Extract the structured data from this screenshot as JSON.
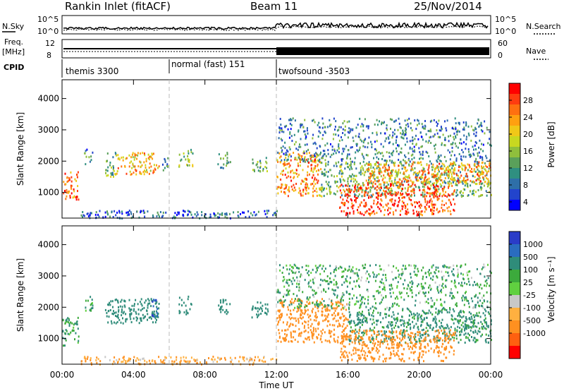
{
  "header": {
    "site": "Rankin Inlet (fitACF)",
    "beam": "Beam 11",
    "date": "25/Nov/2014"
  },
  "status_panels": {
    "nsky_label": "N.Sky",
    "nsky_ticks": [
      "10^5",
      "10^0"
    ],
    "nsearch_label": "N.Search",
    "nsearch_ticks": [
      "10^5",
      "10^0"
    ],
    "freq_label": "Freq.",
    "freq_unit": "[MHz]",
    "freq_ticks": [
      "12",
      "8"
    ],
    "nave_label": "Nave",
    "nave_ticks": [
      "60",
      "0"
    ],
    "cpid_label": "CPID",
    "cpid_segments": [
      {
        "label": "themis 3300",
        "start": 0,
        "end": 6
      },
      {
        "label": "normal (fast) 151",
        "start": 6,
        "end": 12
      },
      {
        "label": "twofsound -3503",
        "start": 12,
        "end": 24
      }
    ]
  },
  "axes": {
    "x_ticks": [
      "00:00",
      "04:00",
      "08:00",
      "12:00",
      "16:00",
      "20:00",
      "00:00"
    ],
    "x_tick_hours": [
      0,
      4,
      8,
      12,
      16,
      20,
      24
    ],
    "x_label": "Time UT",
    "y_label": "Slant Range [km]",
    "y_ticks": [
      "1000",
      "2000",
      "3000",
      "4000"
    ],
    "y_tick_values": [
      1000,
      2000,
      3000,
      4000
    ],
    "y_range": [
      180,
      4600
    ],
    "x_range": [
      0,
      24
    ]
  },
  "chart_data": [
    {
      "type": "heatmap",
      "panel": "power",
      "colorbar_label": "Power [dB]",
      "colorbar_ticks": [
        "28",
        "24",
        "20",
        "16",
        "12",
        "8",
        "4"
      ],
      "colorbar_values": [
        28,
        24,
        20,
        16,
        12,
        8,
        4
      ],
      "colorbar_colors": [
        "#0000ff",
        "#2244cc",
        "#2e6fa8",
        "#2f8f80",
        "#5aa05a",
        "#8fbf3c",
        "#c8d820",
        "#f0c818",
        "#ffa010",
        "#ff7010",
        "#ff3c10",
        "#ff0000"
      ],
      "regions": [
        {
          "t0": 0.0,
          "t1": 0.9,
          "r0": 800,
          "r1": 1700,
          "value": 26
        },
        {
          "t0": 1.2,
          "t1": 1.7,
          "r0": 1900,
          "r1": 2400,
          "value": 10
        },
        {
          "t0": 2.4,
          "t1": 3.0,
          "r0": 1500,
          "r1": 2300,
          "value": 14
        },
        {
          "t0": 3.0,
          "t1": 5.4,
          "r0": 1600,
          "r1": 2300,
          "value": 22
        },
        {
          "t0": 5.6,
          "t1": 5.9,
          "r0": 1700,
          "r1": 2200,
          "value": 12
        },
        {
          "t0": 6.5,
          "t1": 7.3,
          "r0": 1800,
          "r1": 2400,
          "value": 16
        },
        {
          "t0": 8.7,
          "t1": 9.4,
          "r0": 1800,
          "r1": 2300,
          "value": 12
        },
        {
          "t0": 10.6,
          "t1": 11.5,
          "r0": 1700,
          "r1": 2200,
          "value": 14
        },
        {
          "t0": 12.0,
          "t1": 14.5,
          "r0": 900,
          "r1": 2300,
          "value": 24
        },
        {
          "t0": 14.5,
          "t1": 24.0,
          "r0": 900,
          "r1": 2000,
          "value": 14
        },
        {
          "t0": 15.5,
          "t1": 22.0,
          "r0": 300,
          "r1": 1300,
          "value": 28
        },
        {
          "t0": 17.0,
          "t1": 24.0,
          "r0": 1300,
          "r1": 2000,
          "value": 24
        },
        {
          "t0": 12.0,
          "t1": 24.0,
          "r0": 2000,
          "r1": 3400,
          "value": 10
        },
        {
          "t0": 1.0,
          "t1": 12.0,
          "r0": 200,
          "r1": 450,
          "value": 8
        }
      ]
    },
    {
      "type": "heatmap",
      "panel": "velocity",
      "colorbar_label": "Velocity [m s⁻¹]",
      "colorbar_ticks": [
        "1000",
        "500",
        "100",
        "25",
        "-25",
        "-100",
        "-500",
        "-1000"
      ],
      "colorbar_values": [
        1000,
        500,
        100,
        25,
        -25,
        -100,
        -500,
        -1000
      ],
      "colorbar_colors": [
        "#2a3cc8",
        "#2a6cc0",
        "#2f8c7a",
        "#3caa3c",
        "#60d040",
        "#c8c8c8",
        "#ffb040",
        "#ff9020",
        "#ff6010",
        "#ff0000"
      ],
      "regions": [
        {
          "t0": 0.0,
          "t1": 0.9,
          "r0": 800,
          "r1": 1700,
          "value": 100
        },
        {
          "t0": 1.2,
          "t1": 1.7,
          "r0": 1900,
          "r1": 2400,
          "value": 100
        },
        {
          "t0": 2.4,
          "t1": 5.4,
          "r0": 1500,
          "r1": 2300,
          "value": 300
        },
        {
          "t0": 5.0,
          "t1": 5.4,
          "r0": 1700,
          "r1": 2300,
          "value": 900
        },
        {
          "t0": 6.5,
          "t1": 7.3,
          "r0": 1800,
          "r1": 2400,
          "value": 300
        },
        {
          "t0": 8.7,
          "t1": 9.4,
          "r0": 1800,
          "r1": 2300,
          "value": 300
        },
        {
          "t0": 10.6,
          "t1": 11.5,
          "r0": 1700,
          "r1": 2200,
          "value": 200
        },
        {
          "t0": 12.0,
          "t1": 16.0,
          "r0": 900,
          "r1": 2300,
          "value": -300
        },
        {
          "t0": 16.0,
          "t1": 24.0,
          "r0": 900,
          "r1": 2000,
          "value": 150
        },
        {
          "t0": 15.5,
          "t1": 22.0,
          "r0": 300,
          "r1": 1300,
          "value": -300
        },
        {
          "t0": 12.0,
          "t1": 24.0,
          "r0": 2000,
          "r1": 3400,
          "value": 80
        },
        {
          "t0": 1.0,
          "t1": 12.0,
          "r0": 200,
          "r1": 450,
          "value": -100
        }
      ]
    }
  ]
}
